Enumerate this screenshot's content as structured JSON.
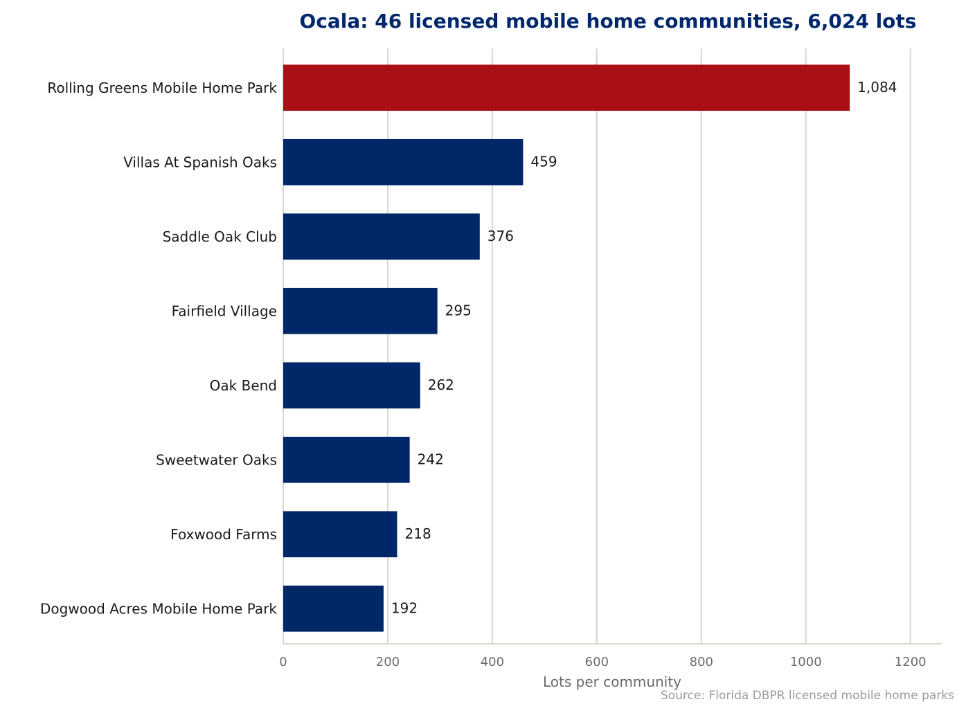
{
  "chart_data": {
    "type": "bar",
    "orientation": "horizontal",
    "title": "Ocala: 46 licensed mobile home communities, 6,024 lots",
    "xlabel": "Lots per community",
    "source": "Source: Florida DBPR licensed mobile home parks",
    "categories": [
      "Rolling Greens Mobile Home Park",
      "Villas At Spanish Oaks",
      "Saddle Oak Club",
      "Fairfield Village",
      "Oak Bend",
      "Sweetwater Oaks",
      "Foxwood Farms",
      "Dogwood Acres Mobile Home Park"
    ],
    "values": [
      1084,
      459,
      376,
      295,
      262,
      242,
      218,
      192
    ],
    "value_labels": [
      "1,084",
      "459",
      "376",
      "295",
      "262",
      "242",
      "218",
      "192"
    ],
    "xlim": [
      0,
      1260
    ],
    "xticks": [
      0,
      200,
      400,
      600,
      800,
      1000,
      1200
    ],
    "grid": true,
    "highlight_index": 0,
    "colors": {
      "highlight": "#a81015",
      "bar": "#002868",
      "title": "#00266b",
      "grid": "#d9d6cf"
    }
  }
}
